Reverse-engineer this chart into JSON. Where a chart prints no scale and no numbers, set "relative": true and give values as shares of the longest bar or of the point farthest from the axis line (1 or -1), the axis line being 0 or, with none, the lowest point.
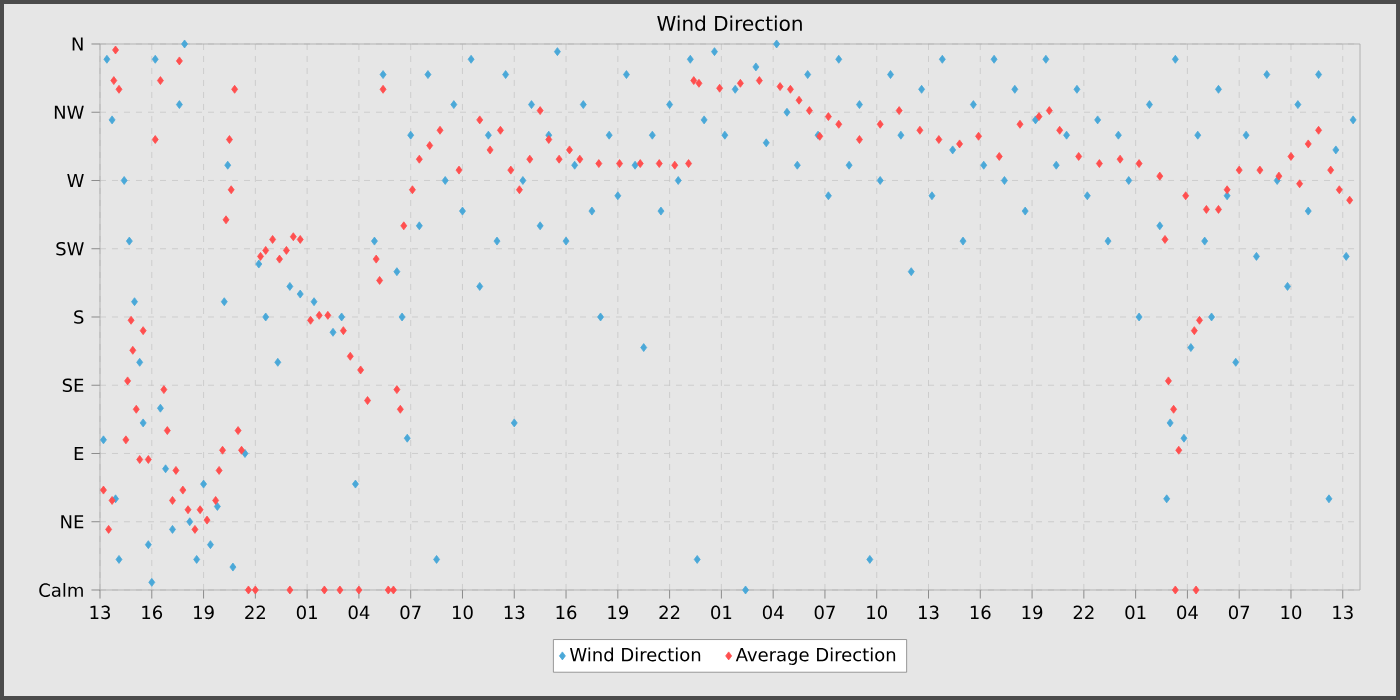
{
  "chart_data": {
    "type": "scatter",
    "title": "Wind Direction",
    "xlim": [
      "--01-01T13:00",
      "--01-04T14:00"
    ],
    "xticks": [
      {
        "value": "--01-01T13:00",
        "label": "13"
      },
      {
        "value": "--01-01T16:00",
        "label": "16"
      },
      {
        "value": "--01-01T19:00",
        "label": "19"
      },
      {
        "value": "--01-01T22:00",
        "label": "22"
      },
      {
        "value": "--01-02T01:00",
        "label": "01"
      },
      {
        "value": "--01-02T04:00",
        "label": "04"
      },
      {
        "value": "--01-02T07:00",
        "label": "07"
      },
      {
        "value": "--01-02T10:00",
        "label": "10"
      },
      {
        "value": "--01-02T13:00",
        "label": "13"
      },
      {
        "value": "--01-02T16:00",
        "label": "16"
      },
      {
        "value": "--01-02T19:00",
        "label": "19"
      },
      {
        "value": "--01-02T22:00",
        "label": "22"
      },
      {
        "value": "--01-03T01:00",
        "label": "01"
      },
      {
        "value": "--01-03T04:00",
        "label": "04"
      },
      {
        "value": "--01-03T07:00",
        "label": "07"
      },
      {
        "value": "--01-03T10:00",
        "label": "10"
      },
      {
        "value": "--01-03T13:00",
        "label": "13"
      },
      {
        "value": "--01-03T16:00",
        "label": "16"
      },
      {
        "value": "--01-03T19:00",
        "label": "19"
      },
      {
        "value": "--01-03T22:00",
        "label": "22"
      },
      {
        "value": "--01-04T01:00",
        "label": "01"
      },
      {
        "value": "--01-04T04:00",
        "label": "04"
      },
      {
        "value": "--01-04T07:00",
        "label": "07"
      },
      {
        "value": "--01-04T10:00",
        "label": "10"
      },
      {
        "value": "--01-04T13:00",
        "label": "13"
      }
    ],
    "relative": true,
    "annotations": [
      "Calm",
      "NE",
      "E",
      "SE",
      "S",
      "SW",
      "W",
      "NW",
      "N"
    ],
    "grid": true,
    "legend": "bottom",
    "series": [
      {
        "name": "Wind Direction",
        "color": "#4aa8d8",
        "marker": "diamond",
        "x": [
          "--01-01T13:12",
          "--01-01T13:24",
          "--01-01T13:42",
          "--01-01T13:54",
          "--01-01T14:06",
          "--01-01T14:24",
          "--01-01T14:42",
          "--01-01T15:00",
          "--01-01T15:18",
          "--01-01T15:30",
          "--01-01T15:48",
          "--01-01T16:00",
          "--01-01T16:12",
          "--01-01T16:30",
          "--01-01T16:48",
          "--01-01T17:12",
          "--01-01T17:36",
          "--01-01T17:54",
          "--01-01T18:12",
          "--01-01T18:36",
          "--01-01T19:00",
          "--01-01T19:24",
          "--01-01T19:48",
          "--01-01T20:12",
          "--01-01T20:24",
          "--01-01T20:42",
          "--01-01T21:24",
          "--01-01T22:12",
          "--01-01T22:36",
          "--01-01T23:18",
          "--01-02T00:00",
          "--01-02T00:36",
          "--01-02T01:24",
          "--01-02T02:30",
          "--01-02T03:00",
          "--01-02T03:48",
          "--01-02T04:54",
          "--01-02T05:24",
          "--01-02T06:12",
          "--01-02T06:30",
          "--01-02T06:48",
          "--01-02T07:00",
          "--01-02T07:30",
          "--01-02T08:00",
          "--01-02T08:30",
          "--01-02T09:00",
          "--01-02T09:30",
          "--01-02T10:00",
          "--01-02T10:30",
          "--01-02T11:00",
          "--01-02T11:30",
          "--01-02T12:00",
          "--01-02T12:30",
          "--01-02T13:00",
          "--01-02T13:30",
          "--01-02T14:00",
          "--01-02T14:30",
          "--01-02T15:00",
          "--01-02T15:30",
          "--01-02T16:00",
          "--01-02T16:30",
          "--01-02T17:00",
          "--01-02T17:30",
          "--01-02T18:00",
          "--01-02T18:30",
          "--01-02T19:00",
          "--01-02T19:30",
          "--01-02T20:00",
          "--01-02T20:30",
          "--01-02T21:00",
          "--01-02T21:30",
          "--01-02T22:00",
          "--01-02T22:30",
          "--01-02T23:12",
          "--01-02T23:36",
          "--01-03T00:00",
          "--01-03T00:36",
          "--01-03T01:12",
          "--01-03T01:48",
          "--01-03T02:24",
          "--01-03T03:00",
          "--01-03T03:36",
          "--01-03T04:12",
          "--01-03T04:48",
          "--01-03T05:24",
          "--01-03T06:00",
          "--01-03T06:36",
          "--01-03T07:12",
          "--01-03T07:48",
          "--01-03T08:24",
          "--01-03T09:00",
          "--01-03T09:36",
          "--01-03T10:12",
          "--01-03T10:48",
          "--01-03T11:24",
          "--01-03T12:00",
          "--01-03T12:36",
          "--01-03T13:12",
          "--01-03T13:48",
          "--01-03T14:24",
          "--01-03T15:00",
          "--01-03T15:36",
          "--01-03T16:12",
          "--01-03T16:48",
          "--01-03T17:24",
          "--01-03T18:00",
          "--01-03T18:36",
          "--01-03T19:12",
          "--01-03T19:48",
          "--01-03T20:24",
          "--01-03T21:00",
          "--01-03T21:36",
          "--01-03T22:12",
          "--01-03T22:48",
          "--01-03T23:24",
          "--01-04T00:00",
          "--01-04T00:36",
          "--01-04T01:12",
          "--01-04T01:48",
          "--01-04T02:24",
          "--01-04T02:48",
          "--01-04T03:00",
          "--01-04T03:18",
          "--01-04T03:48",
          "--01-04T04:12",
          "--01-04T04:36",
          "--01-04T05:00",
          "--01-04T05:24",
          "--01-04T05:48",
          "--01-04T06:18",
          "--01-04T06:48",
          "--01-04T07:24",
          "--01-04T08:00",
          "--01-04T08:36",
          "--01-04T09:12",
          "--01-04T09:48",
          "--01-04T10:24",
          "--01-04T11:00",
          "--01-04T11:36",
          "--01-04T12:12",
          "--01-04T12:36",
          "--01-04T13:12",
          "--01-04T13:36"
        ],
        "values": [
          0.275,
          0.972,
          0.861,
          0.167,
          0.056,
          0.75,
          0.639,
          0.528,
          0.417,
          0.306,
          0.083,
          0.014,
          0.972,
          0.333,
          0.222,
          0.111,
          0.889,
          1,
          0.125,
          0.056,
          0.194,
          0.083,
          0.153,
          0.528,
          0.778,
          0.042,
          0.25,
          0.597,
          0.5,
          0.417,
          0.556,
          0.542,
          0.528,
          0.472,
          0.5,
          0.194,
          0.639,
          0.944,
          0.583,
          0.5,
          0.278,
          0.833,
          0.667,
          0.944,
          0.056,
          0.75,
          0.889,
          0.694,
          0.972,
          0.556,
          0.833,
          0.639,
          0.944,
          0.306,
          0.75,
          0.889,
          0.667,
          0.833,
          0.986,
          0.639,
          0.778,
          0.889,
          0.694,
          0.5,
          0.833,
          0.722,
          0.944,
          0.778,
          0.444,
          0.833,
          0.694,
          0.889,
          0.75,
          0.972,
          0.056,
          0.861,
          0.986,
          0.833,
          0.917,
          0,
          0.958,
          0.819,
          1,
          0.875,
          0.778,
          0.944,
          0.833,
          0.722,
          0.972,
          0.778,
          0.889,
          0.056,
          0.75,
          0.944,
          0.833,
          0.583,
          0.917,
          0.722,
          0.972,
          0.806,
          0.639,
          0.889,
          0.778,
          0.972,
          0.75,
          0.917,
          0.694,
          0.861,
          0.972,
          0.778,
          0.833,
          0.917,
          0.722,
          0.861,
          0.639,
          0.833,
          0.75,
          0.5,
          0.889,
          0.667,
          0.167,
          0.306,
          0.972,
          0.278,
          0.444,
          0.833,
          0.639,
          0.5,
          0.917,
          0.722,
          0.417,
          0.833,
          0.611,
          0.944,
          0.75,
          0.556,
          0.889,
          0.694,
          0.944,
          0.167,
          0.806,
          0.611,
          0.861
        ]
      },
      {
        "name": "Average Direction",
        "color": "#ff4f4f",
        "marker": "diamond",
        "x": [
          "--01-01T13:12",
          "--01-01T13:30",
          "--01-01T13:42",
          "--01-01T13:48",
          "--01-01T13:54",
          "--01-01T14:06",
          "--01-01T14:30",
          "--01-01T14:36",
          "--01-01T14:48",
          "--01-01T14:54",
          "--01-01T15:06",
          "--01-01T15:18",
          "--01-01T15:30",
          "--01-01T15:48",
          "--01-01T16:12",
          "--01-01T16:30",
          "--01-01T16:42",
          "--01-01T16:54",
          "--01-01T17:12",
          "--01-01T17:24",
          "--01-01T17:36",
          "--01-01T17:48",
          "--01-01T18:06",
          "--01-01T18:30",
          "--01-01T18:48",
          "--01-01T19:12",
          "--01-01T19:42",
          "--01-01T19:54",
          "--01-01T20:06",
          "--01-01T20:18",
          "--01-01T20:30",
          "--01-01T20:36",
          "--01-01T20:48",
          "--01-01T21:00",
          "--01-01T21:12",
          "--01-01T21:36",
          "--01-01T22:18",
          "--01-01T22:36",
          "--01-01T23:00",
          "--01-01T23:24",
          "--01-01T23:48",
          "--01-02T00:12",
          "--01-02T00:36",
          "--01-02T01:12",
          "--01-02T01:42",
          "--01-02T02:12",
          "--01-02T02:54",
          "--01-02T03:06",
          "--01-02T03:30",
          "--01-02T04:06",
          "--01-02T04:30",
          "--01-02T05:00",
          "--01-02T05:12",
          "--01-02T05:24",
          "--01-02T05:42",
          "--01-02T06:12",
          "--01-02T06:24",
          "--01-02T06:36",
          "--01-02T07:06",
          "--01-02T07:30",
          "--01-02T08:06",
          "--01-02T08:42",
          "--01-02T09:48",
          "--01-02T11:00",
          "--01-02T11:36",
          "--01-02T12:12",
          "--01-02T12:48",
          "--01-02T13:18",
          "--01-02T13:54",
          "--01-02T14:30",
          "--01-02T15:00",
          "--01-02T15:36",
          "--01-02T16:12",
          "--01-02T16:48",
          "--01-02T17:54",
          "--01-02T19:06",
          "--01-02T20:18",
          "--01-02T21:24",
          "--01-02T22:18",
          "--01-02T23:06",
          "--01-02T23:24",
          "--01-02T23:42",
          "--01-03T00:54",
          "--01-03T02:06",
          "--01-03T03:12",
          "--01-03T04:24",
          "--01-03T05:00",
          "--01-03T05:30",
          "--01-03T06:06",
          "--01-03T06:42",
          "--01-03T07:12",
          "--01-03T07:48",
          "--01-03T09:00",
          "--01-03T10:12",
          "--01-03T11:18",
          "--01-03T12:30",
          "--01-03T13:36",
          "--01-03T14:48",
          "--01-03T15:54",
          "--01-03T17:06",
          "--01-03T18:18",
          "--01-03T19:24",
          "--01-03T20:00",
          "--01-03T20:36",
          "--01-03T21:42",
          "--01-03T22:54",
          "--01-04T00:06",
          "--01-04T01:12",
          "--01-04T02:24",
          "--01-04T02:42",
          "--01-04T02:54",
          "--01-04T03:12",
          "--01-04T03:30",
          "--01-04T03:54",
          "--01-04T04:24",
          "--01-04T04:42",
          "--01-04T05:06",
          "--01-04T05:48",
          "--01-04T06:18",
          "--01-04T07:00",
          "--01-04T08:12",
          "--01-04T09:18",
          "--01-04T10:00",
          "--01-04T10:30",
          "--01-04T11:00",
          "--01-04T11:36",
          "--01-04T12:18",
          "--01-04T12:48",
          "--01-04T13:24",
          "--01-01T22:00",
          "--01-02T00:00",
          "--01-02T02:00",
          "--01-02T04:00",
          "--01-02T06:00",
          "--01-04T03:18",
          "--01-04T04:30"
        ],
        "values": [
          0.183,
          0.111,
          0.164,
          0.933,
          0.989,
          0.917,
          0.275,
          0.383,
          0.494,
          0.439,
          0.331,
          0.239,
          0.475,
          0.239,
          0.825,
          0.933,
          0.367,
          0.292,
          0.164,
          0.219,
          0.969,
          0.183,
          0.147,
          0.111,
          0.147,
          0.128,
          0.164,
          0.219,
          0.256,
          0.678,
          0.825,
          0.733,
          0.917,
          0.292,
          0.256,
          0,
          0.611,
          0.622,
          0.642,
          0.606,
          0.622,
          0.647,
          0.642,
          0.494,
          0.503,
          0.503,
          0,
          0.475,
          0.428,
          0.403,
          0.347,
          0.606,
          0.567,
          0.917,
          0,
          0.367,
          0.331,
          0.667,
          0.733,
          0.789,
          0.814,
          0.842,
          0.769,
          0.861,
          0.806,
          0.842,
          0.769,
          0.733,
          0.789,
          0.878,
          0.825,
          0.789,
          0.806,
          0.789,
          0.781,
          0.781,
          0.781,
          0.781,
          0.778,
          0.781,
          0.933,
          0.928,
          0.919,
          0.928,
          0.933,
          0.922,
          0.917,
          0.897,
          0.878,
          0.831,
          0.867,
          0.853,
          0.825,
          0.853,
          0.878,
          0.842,
          0.825,
          0.817,
          0.831,
          0.794,
          0.853,
          0.867,
          0.878,
          0.842,
          0.794,
          0.781,
          0.789,
          0.781,
          0.758,
          0.642,
          0.383,
          0.331,
          0.256,
          0.722,
          0.475,
          0.494,
          0.697,
          0.697,
          0.733,
          0.769,
          0.769,
          0.758,
          0.794,
          0.744,
          0.817,
          0.842,
          0.769,
          0.733,
          0.714,
          0,
          0,
          0,
          0,
          0,
          0,
          0
        ]
      }
    ]
  }
}
